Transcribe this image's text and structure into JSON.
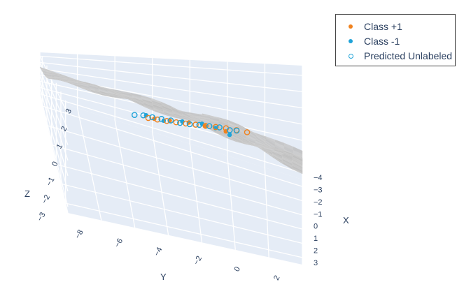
{
  "chart_data": {
    "type": "scatter3d",
    "title": "",
    "axes": {
      "x": {
        "label": "X",
        "range": [
          -4,
          3
        ],
        "ticks": [
          "−4",
          "−3",
          "−2",
          "−1",
          "0",
          "1",
          "2",
          "3"
        ]
      },
      "y": {
        "label": "Y",
        "range": [
          -9,
          3
        ],
        "ticks": [
          "−8",
          "−6",
          "−4",
          "−2",
          "0",
          "2"
        ]
      },
      "z": {
        "label": "Z",
        "range": [
          -3.4,
          3.6
        ],
        "ticks": [
          "−3",
          "−2",
          "−1",
          "0",
          "1",
          "2",
          "3"
        ]
      }
    },
    "surface": {
      "name": "decision boundary",
      "color": "#c8c8c8",
      "opacity": 0.85
    },
    "legend": {
      "position": "top-right",
      "entries": [
        {
          "label": "Class +1",
          "color": "#f0821e",
          "marker": "filled-circle"
        },
        {
          "label": "Class -1",
          "color": "#1fa3d8",
          "marker": "filled-circle"
        },
        {
          "label": "Predicted Unlabeled",
          "color": "#1fa3d8",
          "marker": "open-circle"
        }
      ]
    },
    "series": [
      {
        "name": "Class +1",
        "color": "#f0821e",
        "marker": "filled",
        "points": [
          [
            -1.3,
            -6.2,
            2.4
          ],
          [
            -0.8,
            -4.8,
            1.9
          ],
          [
            -0.2,
            -3.1,
            1.3
          ],
          [
            0.3,
            -1.6,
            0.6
          ],
          [
            0.9,
            -0.2,
            -0.1
          ]
        ]
      },
      {
        "name": "Class -1",
        "color": "#1fa3d8",
        "marker": "filled",
        "points": [
          [
            -1.6,
            -7.6,
            3.0
          ],
          [
            -1.0,
            -5.5,
            2.1
          ],
          [
            -0.4,
            -3.6,
            1.5
          ],
          [
            0.2,
            -2.0,
            0.9
          ],
          [
            0.6,
            -0.9,
            0.3
          ],
          [
            1.0,
            -0.4,
            -0.2
          ]
        ]
      },
      {
        "name": "Predicted Unlabeled (Class +1)",
        "color": "#f0821e",
        "marker": "open",
        "points": [
          [
            -1.5,
            -6.8,
            2.6
          ],
          [
            -1.2,
            -6.0,
            2.3
          ],
          [
            -0.9,
            -5.2,
            2.0
          ],
          [
            -0.6,
            -4.4,
            1.7
          ],
          [
            -0.3,
            -3.6,
            1.4
          ],
          [
            0.0,
            -2.8,
            1.1
          ],
          [
            0.3,
            -2.0,
            0.8
          ],
          [
            0.6,
            -1.2,
            0.5
          ],
          [
            0.9,
            -0.4,
            0.2
          ],
          [
            1.2,
            0.3,
            -0.1
          ],
          [
            1.5,
            1.0,
            -0.4
          ]
        ]
      },
      {
        "name": "Predicted Unlabeled (Class -1)",
        "color": "#1fa3d8",
        "marker": "open",
        "points": [
          [
            -2.0,
            -8.8,
            3.3
          ],
          [
            -1.7,
            -8.0,
            3.1
          ],
          [
            -1.4,
            -7.2,
            2.8
          ],
          [
            -1.1,
            -6.4,
            2.5
          ],
          [
            -0.8,
            -5.6,
            2.2
          ],
          [
            -0.5,
            -4.7,
            1.8
          ],
          [
            -0.2,
            -3.9,
            1.5
          ],
          [
            0.1,
            -3.0,
            1.2
          ],
          [
            0.4,
            -2.2,
            0.9
          ],
          [
            0.7,
            -1.4,
            0.6
          ],
          [
            1.0,
            -0.6,
            0.2
          ],
          [
            1.2,
            0.0,
            0.0
          ]
        ]
      }
    ]
  }
}
